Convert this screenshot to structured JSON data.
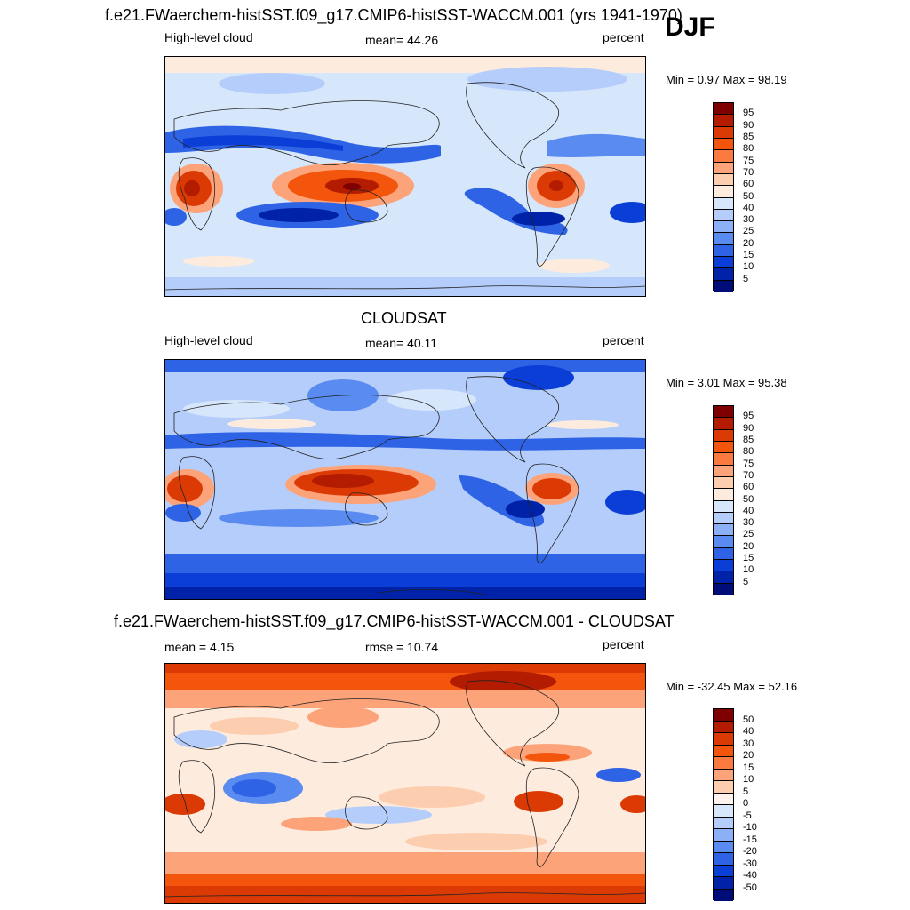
{
  "djf": "DJF",
  "panels": [
    {
      "title": "f.e21.FWaerchem-histSST.f09_g17.CMIP6-histSST-WACCM.001 (yrs 1941-1970)",
      "left_label": "High-level cloud",
      "center_label": "mean=  44.26",
      "right_label": "percent",
      "minmax": "Min =   0.97 Max =  98.19",
      "colorbar_labels": [
        "95",
        "90",
        "85",
        "80",
        "75",
        "70",
        "60",
        "50",
        "40",
        "30",
        "25",
        "20",
        "15",
        "10",
        "5"
      ],
      "colors": [
        "#7f0000",
        "#b31c00",
        "#dc3a05",
        "#f3550c",
        "#fb7a3f",
        "#fda37a",
        "#fdcdb0",
        "#fdebdd",
        "#d7e7fb",
        "#b5cdfa",
        "#8bb0f6",
        "#5a8bf0",
        "#2e63e6",
        "#0b3ed6",
        "#0022a8",
        "#000c78"
      ]
    },
    {
      "title": "CLOUDSAT",
      "left_label": "High-level cloud",
      "center_label": "mean=  40.11",
      "right_label": "percent",
      "minmax": "Min =   3.01 Max =  95.38",
      "colorbar_labels": [
        "95",
        "90",
        "85",
        "80",
        "75",
        "70",
        "60",
        "50",
        "40",
        "30",
        "25",
        "20",
        "15",
        "10",
        "5"
      ],
      "colors": [
        "#7f0000",
        "#b31c00",
        "#dc3a05",
        "#f3550c",
        "#fb7a3f",
        "#fda37a",
        "#fdcdb0",
        "#fdebdd",
        "#d7e7fb",
        "#b5cdfa",
        "#8bb0f6",
        "#5a8bf0",
        "#2e63e6",
        "#0b3ed6",
        "#0022a8",
        "#000c78"
      ]
    },
    {
      "title": "f.e21.FWaerchem-histSST.f09_g17.CMIP6-histSST-WACCM.001 - CLOUDSAT",
      "left_label": "mean =   4.15",
      "center_label": "rmse =  10.74",
      "right_label": "percent",
      "minmax": "Min = -32.45 Max =  52.16",
      "colorbar_labels": [
        "50",
        "40",
        "30",
        "20",
        "15",
        "10",
        "5",
        "0",
        "-5",
        "-10",
        "-15",
        "-20",
        "-30",
        "-40",
        "-50"
      ],
      "colors": [
        "#7f0000",
        "#b31c00",
        "#dc3a05",
        "#f3550c",
        "#fb7a3f",
        "#fda37a",
        "#fdcdb0",
        "#fdf3ec",
        "#d7e7fb",
        "#b5cdfa",
        "#8bb0f6",
        "#5a8bf0",
        "#2e63e6",
        "#0b3ed6",
        "#0022a8",
        "#000c78"
      ]
    }
  ],
  "chart_data": [
    {
      "type": "heatmap",
      "title": "f.e21.FWaerchem-histSST.f09_g17.CMIP6-histSST-WACCM.001 (yrs 1941-1970)",
      "variable": "High-level cloud",
      "units": "percent",
      "season": "DJF",
      "mean": 44.26,
      "min": 0.97,
      "max": 98.19,
      "levels": [
        5,
        10,
        15,
        20,
        25,
        30,
        40,
        50,
        60,
        70,
        75,
        80,
        85,
        90,
        95
      ]
    },
    {
      "type": "heatmap",
      "title": "CLOUDSAT",
      "variable": "High-level cloud",
      "units": "percent",
      "mean": 40.11,
      "min": 3.01,
      "max": 95.38,
      "levels": [
        5,
        10,
        15,
        20,
        25,
        30,
        40,
        50,
        60,
        70,
        75,
        80,
        85,
        90,
        95
      ]
    },
    {
      "type": "heatmap",
      "title": "f.e21.FWaerchem-histSST.f09_g17.CMIP6-histSST-WACCM.001 - CLOUDSAT",
      "units": "percent",
      "mean": 4.15,
      "rmse": 10.74,
      "min": -32.45,
      "max": 52.16,
      "levels": [
        -50,
        -40,
        -30,
        -20,
        -15,
        -10,
        -5,
        0,
        5,
        10,
        15,
        20,
        30,
        40,
        50
      ]
    }
  ]
}
